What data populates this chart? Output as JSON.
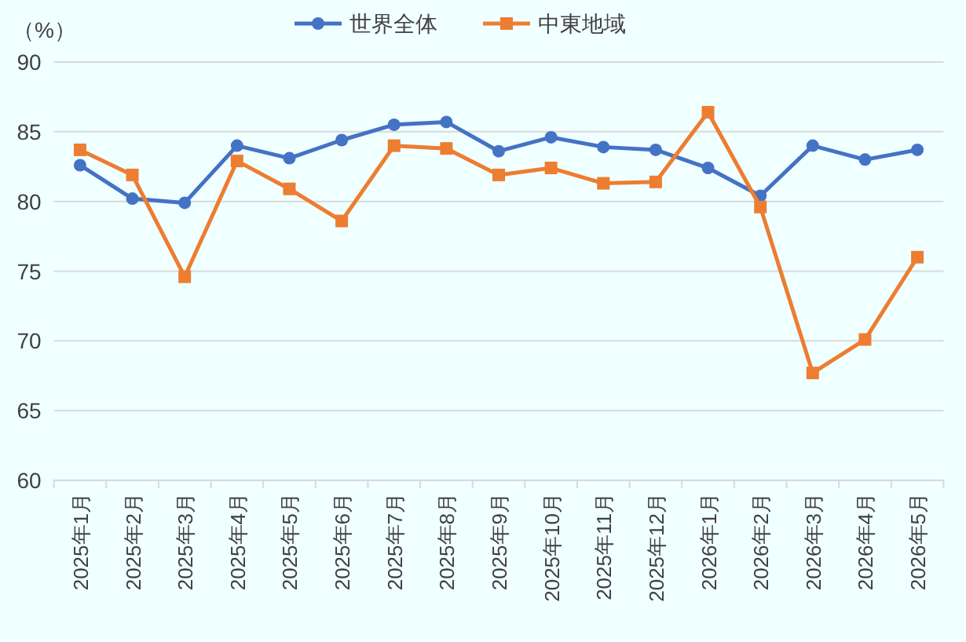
{
  "chart_data": {
    "type": "line",
    "ylabel": "（%）",
    "categories": [
      "2025年1月",
      "2025年2月",
      "2025年3月",
      "2025年4月",
      "2025年5月",
      "2025年6月",
      "2025年7月",
      "2025年8月",
      "2025年9月",
      "2025年10月",
      "2025年11月",
      "2025年12月",
      "2026年1月",
      "2026年2月",
      "2026年3月",
      "2026年4月",
      "2026年5月"
    ],
    "series": [
      {
        "name": "世界全体",
        "color": "#4472c4",
        "marker": "circle",
        "values": [
          82.6,
          80.2,
          79.9,
          84.0,
          83.1,
          84.4,
          85.5,
          85.7,
          83.6,
          84.6,
          83.9,
          83.7,
          82.4,
          80.4,
          84.0,
          83.0,
          83.7
        ]
      },
      {
        "name": "中東地域",
        "color": "#ed7d31",
        "marker": "square",
        "values": [
          83.7,
          81.9,
          74.6,
          82.9,
          80.9,
          78.6,
          84.0,
          83.8,
          81.9,
          82.4,
          81.3,
          81.4,
          86.4,
          79.6,
          67.7,
          70.1,
          76.0
        ]
      }
    ],
    "ylim": [
      60,
      90
    ],
    "yticks": [
      60,
      65,
      70,
      75,
      80,
      85,
      90
    ],
    "grid": "y",
    "legend": "top"
  }
}
